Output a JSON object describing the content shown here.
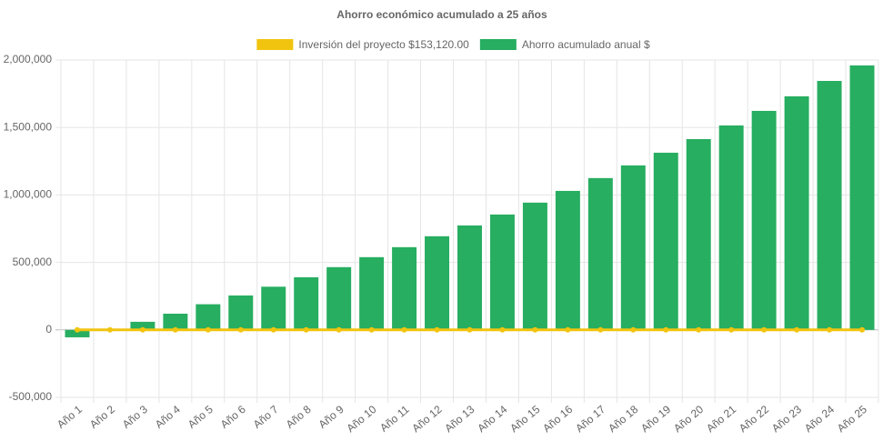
{
  "chart_data": {
    "type": "bar",
    "title": "Ahorro económico acumulado a 25 años",
    "categories": [
      "Año 1",
      "Año 2",
      "Año 3",
      "Año 4",
      "Año 5",
      "Año 6",
      "Año 7",
      "Año 8",
      "Año 9",
      "Año 10",
      "Año 11",
      "Año 12",
      "Año 13",
      "Año 14",
      "Año 15",
      "Año 16",
      "Año 17",
      "Año 18",
      "Año 19",
      "Año 20",
      "Año 21",
      "Año 22",
      "Año 23",
      "Año 24",
      "Año 25"
    ],
    "series": [
      {
        "name": "Inversión del proyecto $153,120.00",
        "type": "line",
        "color": "#f1c40f",
        "values": [
          0,
          0,
          0,
          0,
          0,
          0,
          0,
          0,
          0,
          0,
          0,
          0,
          0,
          0,
          0,
          0,
          0,
          0,
          0,
          0,
          0,
          0,
          0,
          0,
          0
        ]
      },
      {
        "name": "Ahorro acumulado anual $",
        "type": "bar",
        "color": "#27ae60",
        "values": [
          -55000,
          0,
          60000,
          120000,
          190000,
          255000,
          320000,
          390000,
          465000,
          539000,
          613000,
          694000,
          774000,
          855000,
          943000,
          1030000,
          1125000,
          1219000,
          1313000,
          1414000,
          1515000,
          1623000,
          1731000,
          1845000,
          1960000
        ]
      }
    ],
    "ylim": [
      -500000,
      2000000
    ],
    "yticks": [
      {
        "value": -500000,
        "label": "-500,000"
      },
      0,
      {
        "value": 500000,
        "label": "500,000"
      },
      {
        "value": 1000000,
        "label": "1,000,000"
      },
      {
        "value": 1500000,
        "label": "1,500,000"
      },
      {
        "value": 2000000,
        "label": "2,000,000"
      }
    ],
    "grid": true
  }
}
